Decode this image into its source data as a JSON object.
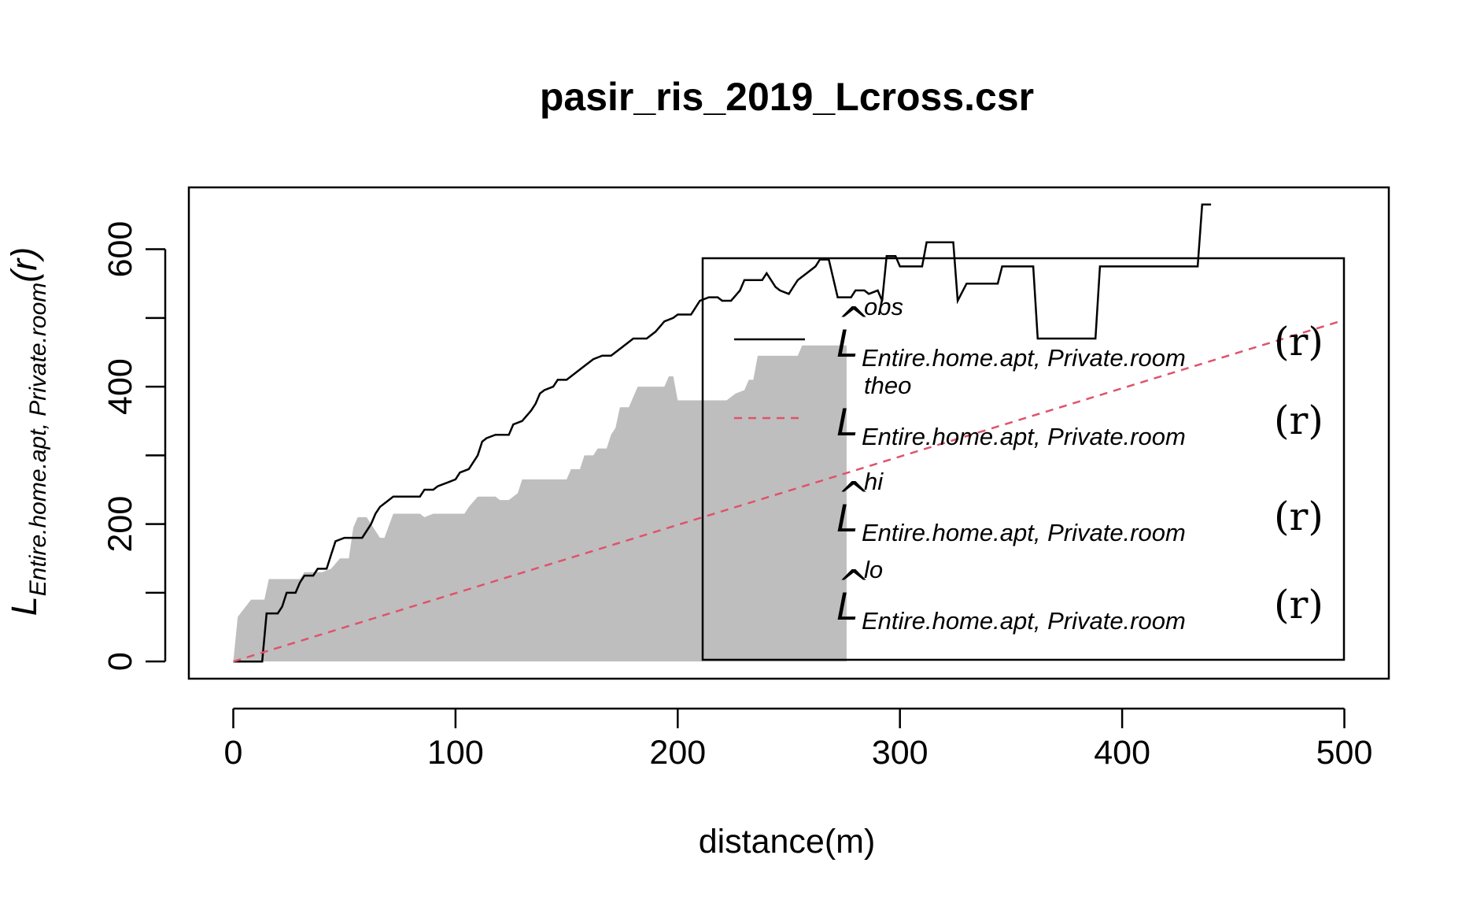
{
  "chart_data": {
    "type": "line",
    "title": "pasir_ris_2019_Lcross.csr",
    "xlabel": "distance(m)",
    "ylabel": {
      "main": "L",
      "sub": "Entire.home.apt, Private.room",
      "arg": "(r)"
    },
    "xlim": [
      -20,
      520
    ],
    "ylim": [
      -25,
      690
    ],
    "x_ticks": [
      "0",
      "100",
      "200",
      "300",
      "400",
      "500"
    ],
    "y_ticks": [
      "0",
      "200",
      "400",
      "600"
    ],
    "legend": {
      "position": "right",
      "items": [
        {
          "key": "obs",
          "symbol": "L",
          "hat": "^",
          "sup": "obs",
          "sub": "Entire.home.apt, Private.room",
          "arg": "(r)",
          "color": "#000000",
          "dash": "solid"
        },
        {
          "key": "theo",
          "symbol": "L",
          "hat": "",
          "sup": "theo",
          "sub": "Entire.home.apt, Private.room",
          "arg": "(r)",
          "color": "#DF536B",
          "dash": "dashed"
        },
        {
          "key": "hi",
          "symbol": "L",
          "hat": "^",
          "sup": "hi",
          "sub": "Entire.home.apt, Private.room",
          "arg": "(r)",
          "color": "",
          "dash": "none"
        },
        {
          "key": "lo",
          "symbol": "L",
          "hat": "^",
          "sup": "lo",
          "sub": "Entire.home.apt, Private.room",
          "arg": "(r)",
          "color": "",
          "dash": "none"
        }
      ]
    },
    "series": [
      {
        "key": "obs",
        "color": "#000000",
        "style": "solid",
        "points": [
          [
            0,
            0
          ],
          [
            13,
            0
          ],
          [
            15,
            70
          ],
          [
            20,
            70
          ],
          [
            22,
            80
          ],
          [
            24,
            100
          ],
          [
            28,
            100
          ],
          [
            30,
            115
          ],
          [
            32,
            125
          ],
          [
            36,
            125
          ],
          [
            38,
            135
          ],
          [
            42,
            135
          ],
          [
            44,
            155
          ],
          [
            46,
            175
          ],
          [
            50,
            180
          ],
          [
            58,
            180
          ],
          [
            62,
            200
          ],
          [
            64,
            215
          ],
          [
            66,
            225
          ],
          [
            68,
            230
          ],
          [
            70,
            235
          ],
          [
            72,
            240
          ],
          [
            84,
            240
          ],
          [
            86,
            250
          ],
          [
            90,
            250
          ],
          [
            92,
            255
          ],
          [
            96,
            260
          ],
          [
            100,
            265
          ],
          [
            102,
            275
          ],
          [
            106,
            280
          ],
          [
            108,
            290
          ],
          [
            110,
            300
          ],
          [
            112,
            320
          ],
          [
            114,
            325
          ],
          [
            118,
            330
          ],
          [
            124,
            330
          ],
          [
            126,
            345
          ],
          [
            130,
            350
          ],
          [
            134,
            365
          ],
          [
            136,
            375
          ],
          [
            138,
            390
          ],
          [
            140,
            395
          ],
          [
            144,
            400
          ],
          [
            146,
            410
          ],
          [
            150,
            410
          ],
          [
            154,
            420
          ],
          [
            158,
            430
          ],
          [
            162,
            440
          ],
          [
            166,
            445
          ],
          [
            170,
            445
          ],
          [
            174,
            455
          ],
          [
            178,
            465
          ],
          [
            180,
            470
          ],
          [
            186,
            470
          ],
          [
            190,
            480
          ],
          [
            194,
            495
          ],
          [
            198,
            500
          ],
          [
            200,
            505
          ],
          [
            206,
            505
          ],
          [
            208,
            515
          ],
          [
            210,
            525
          ],
          [
            214,
            530
          ],
          [
            218,
            530
          ],
          [
            220,
            525
          ],
          [
            224,
            525
          ],
          [
            228,
            540
          ],
          [
            230,
            555
          ],
          [
            238,
            555
          ],
          [
            240,
            565
          ],
          [
            244,
            545
          ],
          [
            246,
            540
          ],
          [
            250,
            535
          ],
          [
            252,
            545
          ],
          [
            254,
            555
          ],
          [
            258,
            565
          ],
          [
            262,
            575
          ],
          [
            264,
            585
          ],
          [
            268,
            585
          ],
          [
            272,
            530
          ],
          [
            278,
            530
          ],
          [
            280,
            540
          ],
          [
            284,
            540
          ],
          [
            286,
            535
          ],
          [
            290,
            540
          ],
          [
            292,
            525
          ],
          [
            294,
            590
          ],
          [
            298,
            590
          ],
          [
            300,
            575
          ],
          [
            310,
            575
          ],
          [
            312,
            610
          ],
          [
            324,
            610
          ],
          [
            326,
            525
          ],
          [
            330,
            550
          ],
          [
            344,
            550
          ],
          [
            346,
            575
          ],
          [
            360,
            575
          ],
          [
            362,
            470
          ],
          [
            388,
            470
          ],
          [
            390,
            575
          ],
          [
            434,
            575
          ],
          [
            436,
            665
          ],
          [
            440,
            665
          ]
        ]
      },
      {
        "key": "theo",
        "color": "#DF536B",
        "style": "dashed",
        "points": [
          [
            0,
            0
          ],
          [
            500,
            497
          ]
        ]
      },
      {
        "key": "envelope",
        "color": "#BEBEBE",
        "style": "fill",
        "upper": [
          [
            0,
            0
          ],
          [
            2,
            65
          ],
          [
            8,
            90
          ],
          [
            14,
            90
          ],
          [
            16,
            120
          ],
          [
            30,
            120
          ],
          [
            32,
            130
          ],
          [
            40,
            130
          ],
          [
            44,
            135
          ],
          [
            48,
            150
          ],
          [
            52,
            150
          ],
          [
            54,
            195
          ],
          [
            56,
            210
          ],
          [
            60,
            210
          ],
          [
            62,
            200
          ],
          [
            64,
            190
          ],
          [
            66,
            180
          ],
          [
            68,
            180
          ],
          [
            72,
            215
          ],
          [
            84,
            215
          ],
          [
            86,
            210
          ],
          [
            90,
            215
          ],
          [
            104,
            215
          ],
          [
            106,
            225
          ],
          [
            110,
            240
          ],
          [
            118,
            240
          ],
          [
            120,
            235
          ],
          [
            124,
            235
          ],
          [
            128,
            245
          ],
          [
            130,
            265
          ],
          [
            150,
            265
          ],
          [
            152,
            280
          ],
          [
            156,
            280
          ],
          [
            158,
            300
          ],
          [
            162,
            300
          ],
          [
            164,
            310
          ],
          [
            168,
            310
          ],
          [
            170,
            330
          ],
          [
            172,
            340
          ],
          [
            174,
            370
          ],
          [
            178,
            370
          ],
          [
            180,
            385
          ],
          [
            182,
            400
          ],
          [
            194,
            400
          ],
          [
            196,
            415
          ],
          [
            198,
            415
          ],
          [
            200,
            380
          ],
          [
            222,
            380
          ],
          [
            226,
            390
          ],
          [
            230,
            395
          ],
          [
            232,
            410
          ],
          [
            234,
            410
          ],
          [
            236,
            445
          ],
          [
            254,
            445
          ],
          [
            256,
            460
          ],
          [
            276,
            460
          ]
        ],
        "lower": [
          [
            0,
            0
          ],
          [
            276,
            0
          ]
        ]
      }
    ]
  }
}
